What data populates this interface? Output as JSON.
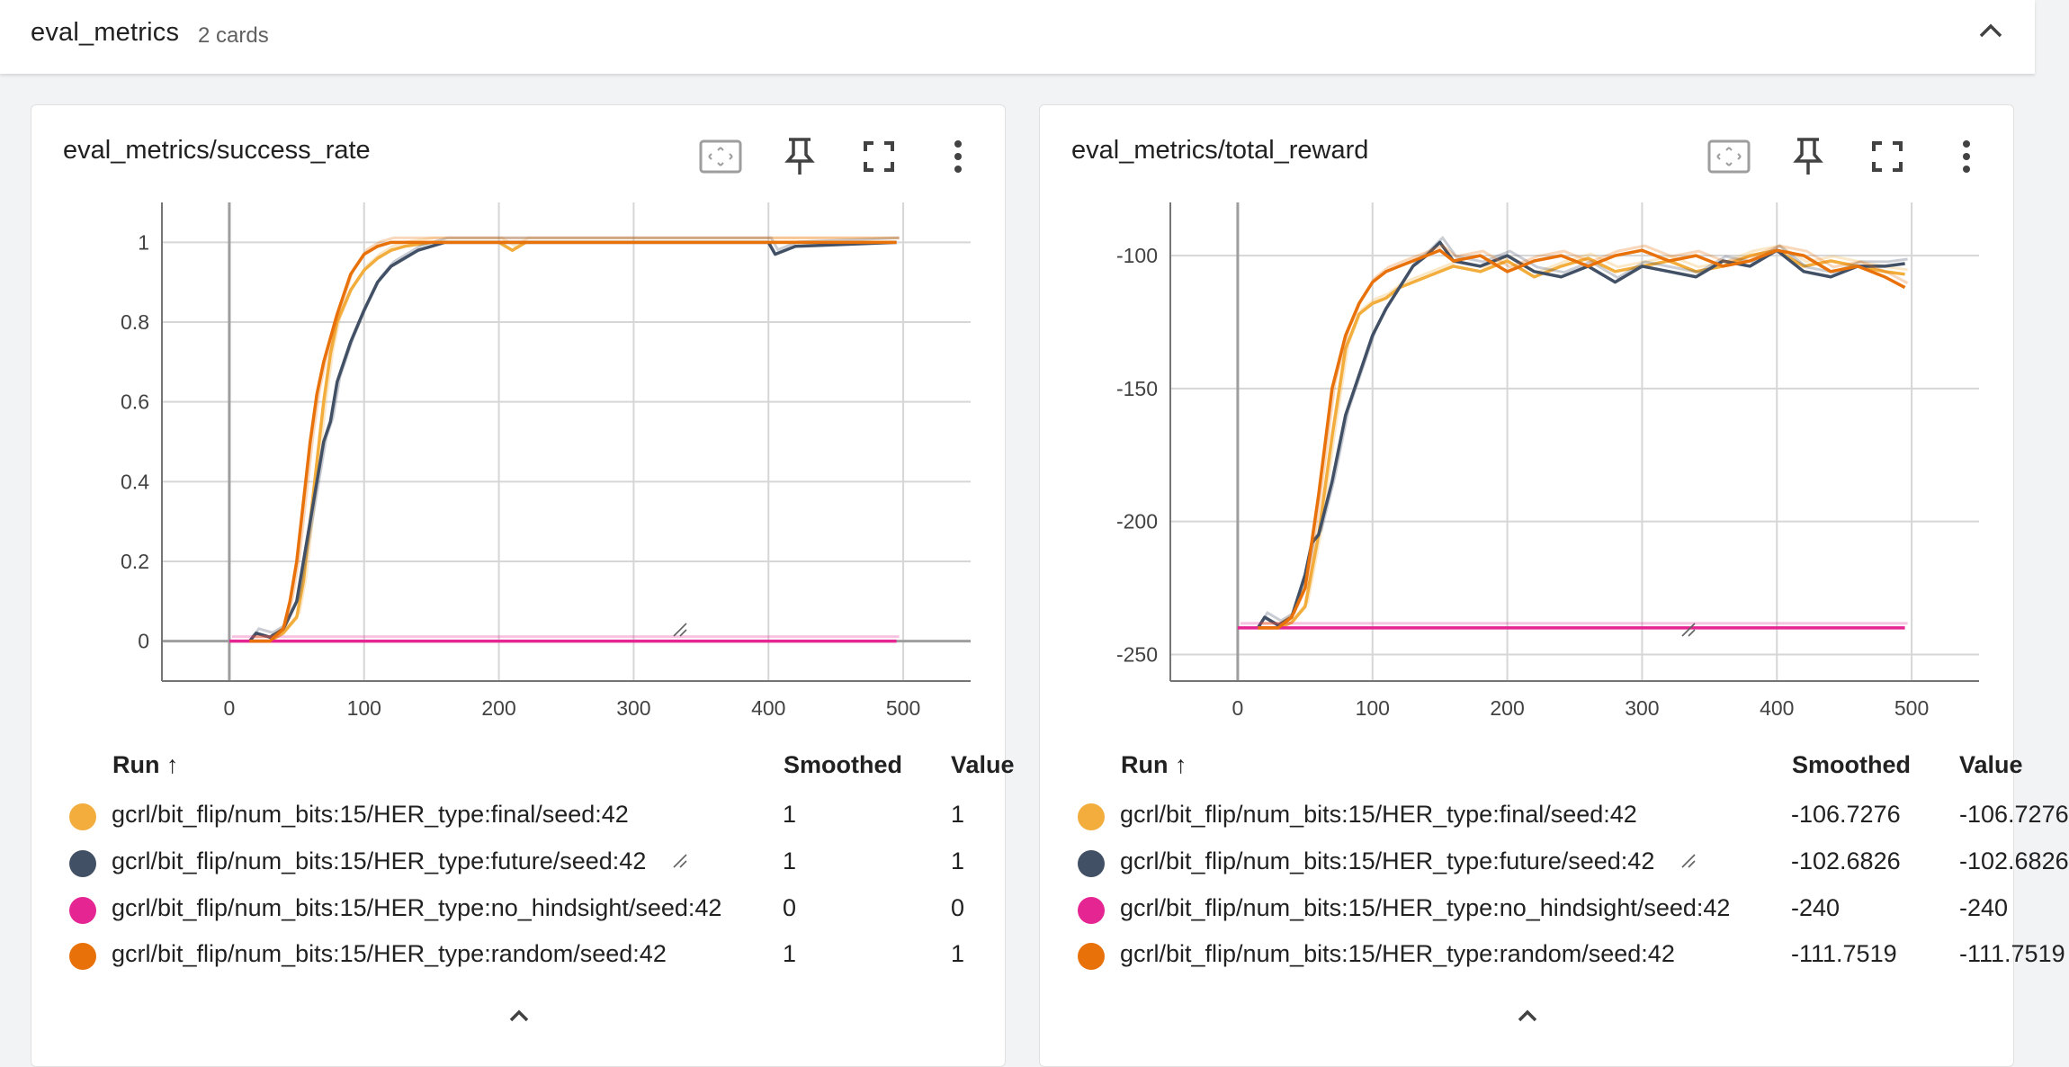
{
  "group": {
    "title": "eval_metrics",
    "count": "2 cards"
  },
  "cards": [
    {
      "title": "eval_metrics/success_rate",
      "table": {
        "headers": {
          "run": "Run ↑",
          "smoothed": "Smoothed",
          "value": "Value"
        },
        "rows": [
          {
            "run": "gcrl/bit_flip/num_bits:15/HER_type:final/seed:42",
            "smoothed": "1",
            "value": "1",
            "color": "#f2ad3c"
          },
          {
            "run": "gcrl/bit_flip/num_bits:15/HER_type:future/seed:42",
            "smoothed": "1",
            "value": "1",
            "color": "#425066"
          },
          {
            "run": "gcrl/bit_flip/num_bits:15/HER_type:no_hindsight/seed:42",
            "smoothed": "0",
            "value": "0",
            "color": "#e52592"
          },
          {
            "run": "gcrl/bit_flip/num_bits:15/HER_type:random/seed:42",
            "smoothed": "1",
            "value": "1",
            "color": "#e8710a"
          }
        ]
      }
    },
    {
      "title": "eval_metrics/total_reward",
      "table": {
        "headers": {
          "run": "Run ↑",
          "smoothed": "Smoothed",
          "value": "Value"
        },
        "rows": [
          {
            "run": "gcrl/bit_flip/num_bits:15/HER_type:final/seed:42",
            "smoothed": "-106.7276",
            "value": "-106.7276",
            "color": "#f2ad3c"
          },
          {
            "run": "gcrl/bit_flip/num_bits:15/HER_type:future/seed:42",
            "smoothed": "-102.6826",
            "value": "-102.6826",
            "color": "#425066"
          },
          {
            "run": "gcrl/bit_flip/num_bits:15/HER_type:no_hindsight/seed:42",
            "smoothed": "-240",
            "value": "-240",
            "color": "#e52592"
          },
          {
            "run": "gcrl/bit_flip/num_bits:15/HER_type:random/seed:42",
            "smoothed": "-111.7519",
            "value": "-111.7519",
            "color": "#e8710a"
          }
        ]
      }
    }
  ],
  "chart_data": [
    {
      "type": "line",
      "title": "eval_metrics/success_rate",
      "xlim": [
        -50,
        550
      ],
      "ylim": [
        -0.1,
        1.1
      ],
      "xticks": [
        "0",
        "100",
        "200",
        "300",
        "400",
        "500"
      ],
      "yticks": [
        "0",
        "0.2",
        "0.4",
        "0.6",
        "0.8",
        "1"
      ],
      "grid": true,
      "series": [
        {
          "name": "gcrl/bit_flip/num_bits:15/HER_type:final/seed:42",
          "color": "#f2ad3c",
          "x": [
            15,
            30,
            40,
            50,
            55,
            60,
            65,
            70,
            75,
            80,
            90,
            100,
            110,
            120,
            130,
            150,
            200,
            210,
            220,
            300,
            400,
            495
          ],
          "y": [
            0,
            0,
            0.02,
            0.06,
            0.15,
            0.3,
            0.45,
            0.6,
            0.72,
            0.8,
            0.88,
            0.93,
            0.96,
            0.98,
            0.99,
            1,
            1,
            0.98,
            1,
            1,
            1,
            1
          ]
        },
        {
          "name": "gcrl/bit_flip/num_bits:15/HER_type:future/seed:42",
          "color": "#425066",
          "x": [
            15,
            20,
            30,
            40,
            50,
            55,
            60,
            65,
            70,
            75,
            80,
            90,
            100,
            110,
            120,
            130,
            140,
            160,
            200,
            300,
            400,
            405,
            420,
            495
          ],
          "y": [
            0,
            0.02,
            0.01,
            0.03,
            0.1,
            0.2,
            0.3,
            0.4,
            0.5,
            0.55,
            0.65,
            0.75,
            0.83,
            0.9,
            0.94,
            0.96,
            0.98,
            1,
            1,
            1,
            1,
            0.97,
            0.99,
            1
          ]
        },
        {
          "name": "gcrl/bit_flip/num_bits:15/HER_type:no_hindsight/seed:42",
          "color": "#e52592",
          "x": [
            0,
            495
          ],
          "y": [
            0,
            0
          ]
        },
        {
          "name": "gcrl/bit_flip/num_bits:15/HER_type:random/seed:42",
          "color": "#e8710a",
          "x": [
            15,
            30,
            40,
            45,
            50,
            55,
            60,
            65,
            70,
            80,
            90,
            100,
            110,
            120,
            140,
            200,
            300,
            400,
            495
          ],
          "y": [
            0,
            0,
            0.03,
            0.1,
            0.2,
            0.35,
            0.5,
            0.62,
            0.7,
            0.82,
            0.92,
            0.97,
            0.99,
            1,
            1,
            1,
            1,
            1,
            1
          ]
        }
      ]
    },
    {
      "type": "line",
      "title": "eval_metrics/total_reward",
      "xlim": [
        -50,
        550
      ],
      "ylim": [
        -260,
        -80
      ],
      "xticks": [
        "0",
        "100",
        "200",
        "300",
        "400",
        "500"
      ],
      "yticks": [
        "-250",
        "-200",
        "-150",
        "-100"
      ],
      "grid": true,
      "series": [
        {
          "name": "gcrl/bit_flip/num_bits:15/HER_type:final/seed:42",
          "color": "#f2ad3c",
          "x": [
            15,
            30,
            40,
            50,
            60,
            70,
            80,
            90,
            100,
            110,
            120,
            140,
            160,
            180,
            200,
            220,
            240,
            260,
            280,
            300,
            320,
            340,
            360,
            380,
            400,
            420,
            440,
            460,
            480,
            495
          ],
          "y": [
            -240,
            -240,
            -238,
            -232,
            -205,
            -168,
            -135,
            -122,
            -118,
            -116,
            -112,
            -108,
            -104,
            -106,
            -102,
            -108,
            -104,
            -101,
            -106,
            -104,
            -102,
            -106,
            -104,
            -100,
            -98,
            -104,
            -102,
            -104,
            -106,
            -107
          ]
        },
        {
          "name": "gcrl/bit_flip/num_bits:15/HER_type:future/seed:42",
          "color": "#425066",
          "x": [
            15,
            20,
            30,
            40,
            50,
            55,
            60,
            70,
            80,
            90,
            100,
            110,
            120,
            130,
            140,
            150,
            160,
            180,
            200,
            220,
            240,
            260,
            280,
            300,
            320,
            340,
            360,
            380,
            400,
            420,
            440,
            460,
            480,
            495
          ],
          "y": [
            -240,
            -236,
            -239,
            -236,
            -220,
            -208,
            -205,
            -185,
            -160,
            -145,
            -130,
            -120,
            -112,
            -104,
            -100,
            -95,
            -102,
            -104,
            -100,
            -106,
            -108,
            -104,
            -110,
            -104,
            -106,
            -108,
            -102,
            -104,
            -98,
            -106,
            -108,
            -104,
            -104,
            -103
          ]
        },
        {
          "name": "gcrl/bit_flip/num_bits:15/HER_type:no_hindsight/seed:42",
          "color": "#e52592",
          "x": [
            0,
            495
          ],
          "y": [
            -240,
            -240
          ]
        },
        {
          "name": "gcrl/bit_flip/num_bits:15/HER_type:random/seed:42",
          "color": "#e8710a",
          "x": [
            15,
            30,
            40,
            50,
            60,
            70,
            80,
            90,
            100,
            110,
            120,
            140,
            150,
            160,
            180,
            200,
            220,
            240,
            260,
            280,
            300,
            320,
            340,
            360,
            380,
            400,
            420,
            440,
            460,
            480,
            495
          ],
          "y": [
            -240,
            -240,
            -236,
            -225,
            -190,
            -150,
            -130,
            -118,
            -110,
            -106,
            -104,
            -100,
            -98,
            -102,
            -100,
            -106,
            -102,
            -100,
            -104,
            -100,
            -98,
            -102,
            -100,
            -104,
            -102,
            -98,
            -100,
            -106,
            -104,
            -108,
            -112
          ]
        }
      ]
    }
  ]
}
